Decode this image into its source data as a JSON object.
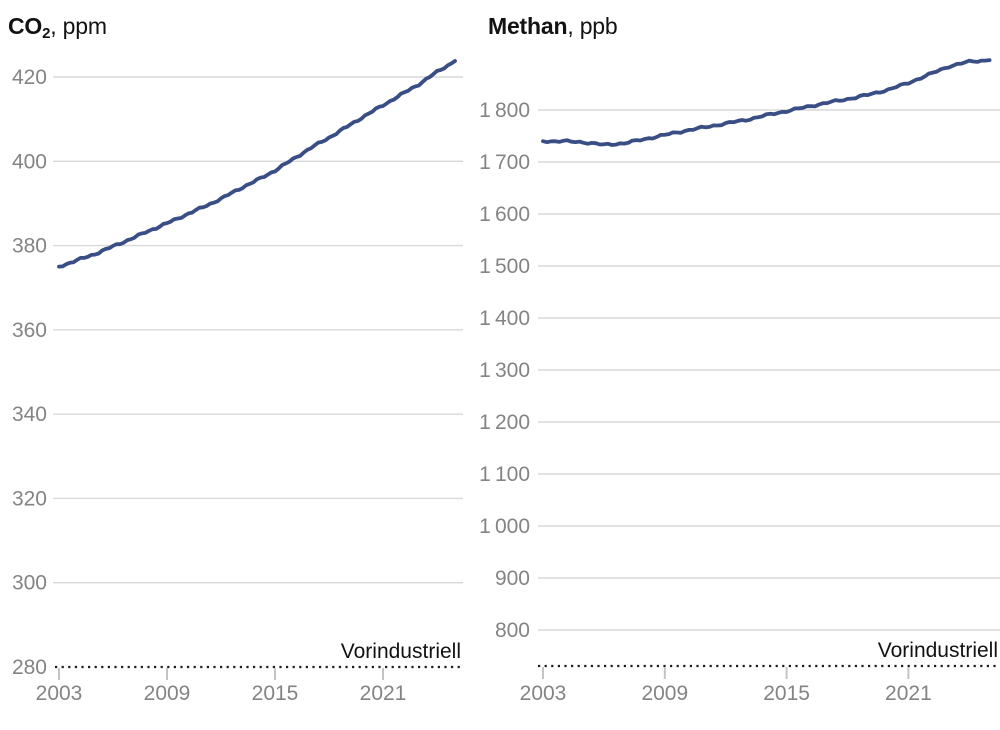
{
  "colors": {
    "background": "#ffffff",
    "line": "#3a4e86",
    "grid": "#d9d9d9",
    "axis_text": "#848484",
    "tick_mark": "#c4c4c4",
    "baseline_dotted": "#1c1c1c",
    "title_text": "#121212"
  },
  "chart_data": [
    {
      "type": "line",
      "title": "CO2, ppm",
      "title_parts": {
        "main": "CO",
        "sub": "2",
        "suffix": ", ppm"
      },
      "unit": "ppm",
      "x": [
        2003,
        2004,
        2005,
        2006,
        2007,
        2008,
        2009,
        2010,
        2011,
        2012,
        2013,
        2014,
        2015,
        2016,
        2017,
        2018,
        2019,
        2020,
        2021,
        2022,
        2023,
        2024,
        2025
      ],
      "values": [
        375.0,
        376.5,
        378.0,
        379.8,
        381.6,
        383.5,
        385.3,
        387.2,
        389.1,
        391.1,
        393.4,
        395.5,
        397.8,
        400.5,
        403.2,
        405.6,
        408.2,
        410.8,
        413.3,
        415.8,
        418.3,
        421.2,
        423.8
      ],
      "x_ticks": [
        2003,
        2009,
        2015,
        2021
      ],
      "x_tick_labels": [
        "2003",
        "2009",
        "2015",
        "2021"
      ],
      "y_ticks": [
        420,
        400,
        380,
        360,
        340,
        320,
        300
      ],
      "y_tick_labels": [
        "420",
        "400",
        "380",
        "360",
        "340",
        "320",
        "300"
      ],
      "xlim": [
        2003,
        2025.2
      ],
      "ylim": [
        280,
        424
      ],
      "grid": true,
      "legend": "none",
      "baseline": {
        "value": 280,
        "label": "280",
        "annotation": "Vorindustriell"
      }
    },
    {
      "type": "line",
      "title": "Methan, ppb",
      "title_parts": {
        "main": "Methan",
        "sub": "",
        "suffix": ", ppb"
      },
      "unit": "ppb",
      "x": [
        2003,
        2004,
        2005,
        2006,
        2007,
        2008,
        2009,
        2010,
        2011,
        2012,
        2013,
        2014,
        2015,
        2016,
        2017,
        2018,
        2019,
        2020,
        2021,
        2022,
        2023,
        2024,
        2025
      ],
      "values": [
        1740,
        1740,
        1738,
        1733,
        1736,
        1744,
        1752,
        1760,
        1767,
        1774,
        1781,
        1790,
        1798,
        1806,
        1814,
        1821,
        1829,
        1839,
        1852,
        1868,
        1884,
        1893,
        1896
      ],
      "x_ticks": [
        2003,
        2009,
        2015,
        2021
      ],
      "x_tick_labels": [
        "2003",
        "2009",
        "2015",
        "2021"
      ],
      "y_ticks": [
        1800,
        1700,
        1600,
        1500,
        1400,
        1300,
        1200,
        1100,
        1000,
        900,
        800
      ],
      "y_tick_labels": [
        "1 800",
        "1 700",
        "1 600",
        "1 500",
        "1 400",
        "1 300",
        "1 200",
        "1 100",
        "1 000",
        "900",
        "800"
      ],
      "xlim": [
        2003,
        2025.2
      ],
      "ylim": [
        730,
        1900
      ],
      "grid": true,
      "legend": "none",
      "baseline": {
        "value": 730,
        "label": "",
        "annotation": "Vorindustriell"
      }
    }
  ]
}
